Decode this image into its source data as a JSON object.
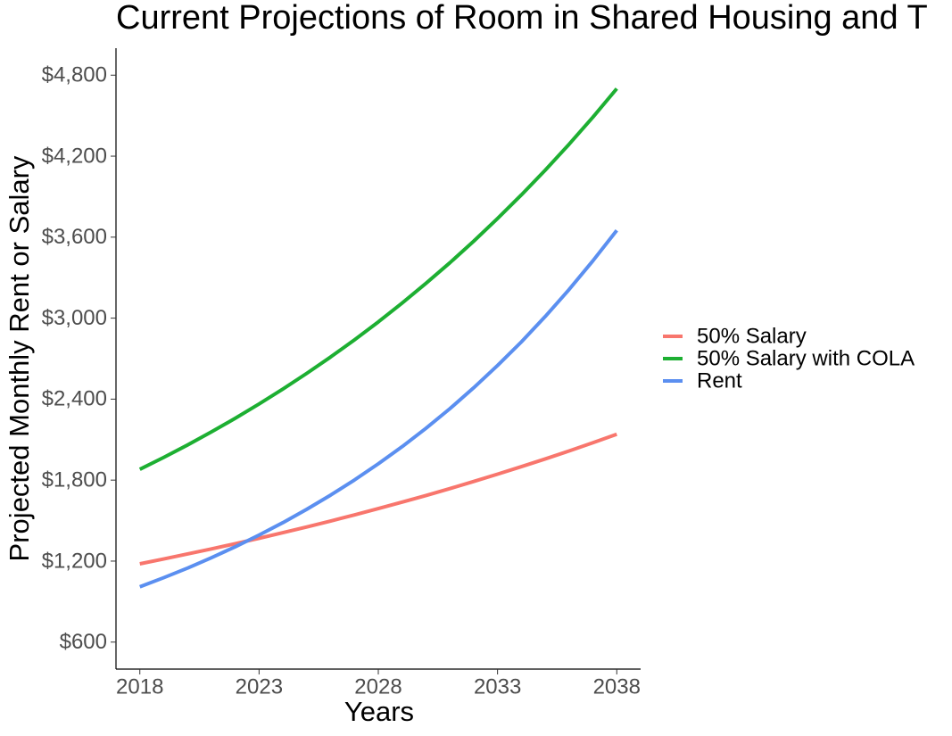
{
  "chart_data": {
    "type": "line",
    "title": "Current Projections of Room in Shared Housing and T",
    "x_label": "Years",
    "y_label": "Projected Monthly Rent or Salary",
    "x": [
      2018,
      2019,
      2020,
      2021,
      2022,
      2023,
      2024,
      2025,
      2026,
      2027,
      2028,
      2029,
      2030,
      2031,
      2032,
      2033,
      2034,
      2035,
      2036,
      2037,
      2038
    ],
    "series": [
      {
        "name": "50% Salary",
        "color": "#F8766D",
        "values": [
          1180,
          1216,
          1253,
          1290,
          1329,
          1369,
          1411,
          1453,
          1497,
          1542,
          1589,
          1637,
          1686,
          1737,
          1790,
          1844,
          1900,
          1957,
          2016,
          2077,
          2140
        ]
      },
      {
        "name": "50% Salary with COLA",
        "color": "#1DAF32",
        "values": [
          1880,
          1968,
          2060,
          2157,
          2258,
          2364,
          2475,
          2591,
          2712,
          2839,
          2972,
          3112,
          3258,
          3410,
          3570,
          3738,
          3913,
          4096,
          4288,
          4489,
          4700
        ]
      },
      {
        "name": "Rent",
        "color": "#5B8FF0",
        "values": [
          1010,
          1077,
          1148,
          1225,
          1306,
          1393,
          1485,
          1584,
          1689,
          1801,
          1921,
          2048,
          2184,
          2329,
          2484,
          2649,
          2824,
          3012,
          3212,
          3425,
          3650
        ]
      }
    ],
    "xlim": [
      2017,
      2039
    ],
    "xticks": [
      2018,
      2023,
      2028,
      2033,
      2038
    ],
    "ylim": [
      400,
      5000
    ],
    "yticks": [
      {
        "value": 600,
        "label": "$600"
      },
      {
        "value": 1200,
        "label": "$1,200"
      },
      {
        "value": 1800,
        "label": "$1,800"
      },
      {
        "value": 2400,
        "label": "$2,400"
      },
      {
        "value": 3000,
        "label": "$3,000"
      },
      {
        "value": 3600,
        "label": "$3,600"
      },
      {
        "value": 4200,
        "label": "$4,200"
      },
      {
        "value": 4800,
        "label": "$4,800"
      }
    ],
    "grid": false,
    "legend": "right"
  }
}
